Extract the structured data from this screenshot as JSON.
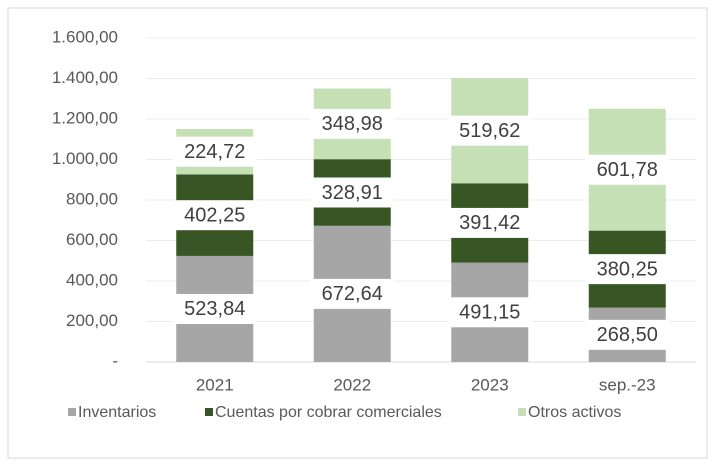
{
  "chart_data": {
    "type": "stacked_bar",
    "categories": [
      "2021",
      "2022",
      "2023",
      "sep.-23"
    ],
    "series": [
      {
        "name": "Inventarios",
        "color": "#a6a6a6",
        "values": [
          523.84,
          672.64,
          491.15,
          268.5
        ],
        "value_labels": [
          "523,84",
          "672,64",
          "491,15",
          "268,50"
        ]
      },
      {
        "name": "Cuentas por cobrar comerciales",
        "color": "#375623",
        "values": [
          402.25,
          328.91,
          391.42,
          380.25
        ],
        "value_labels": [
          "402,25",
          "328,91",
          "391,42",
          "380,25"
        ]
      },
      {
        "name": "Otros activos",
        "color": "#c5e0b4",
        "values": [
          224.72,
          348.98,
          519.62,
          601.78
        ],
        "value_labels": [
          "224,72",
          "348,98",
          "519,62",
          "601,78"
        ]
      }
    ],
    "ylim": [
      0,
      1600
    ],
    "yticks": [
      {
        "value": 0,
        "label": "-"
      },
      {
        "value": 200,
        "label": "200,00"
      },
      {
        "value": 400,
        "label": "400,00"
      },
      {
        "value": 600,
        "label": "600,00"
      },
      {
        "value": 800,
        "label": "800,00"
      },
      {
        "value": 1000,
        "label": "1.000,00"
      },
      {
        "value": 1200,
        "label": "1.200,00"
      },
      {
        "value": 1400,
        "label": "1.400,00"
      },
      {
        "value": 1600,
        "label": "1.600,00"
      }
    ],
    "legend": "bottom"
  }
}
